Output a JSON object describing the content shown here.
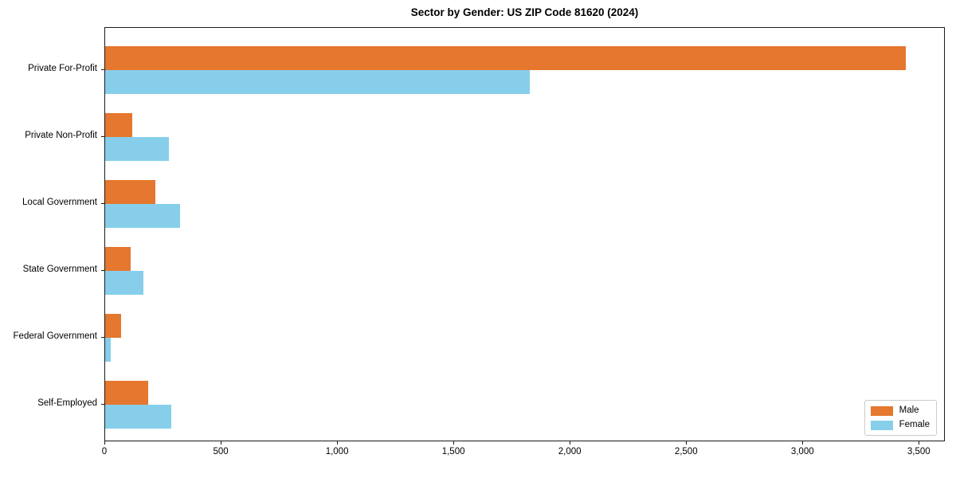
{
  "chart_data": {
    "type": "bar",
    "orientation": "horizontal",
    "title": "Sector by Gender: US ZIP Code 81620 (2024)",
    "categories": [
      "Private For-Profit",
      "Private Non-Profit",
      "Local Government",
      "State Government",
      "Federal Government",
      "Self-Employed"
    ],
    "series": [
      {
        "name": "Male",
        "color": "#E5772E",
        "values": [
          3440,
          115,
          215,
          110,
          70,
          185
        ]
      },
      {
        "name": "Female",
        "color": "#87CEEB",
        "values": [
          1825,
          275,
          320,
          165,
          25,
          285
        ]
      }
    ],
    "xlabel": "",
    "ylabel": "",
    "xlim": [
      0,
      3612
    ],
    "x_tick_values": [
      0,
      500,
      1000,
      1500,
      2000,
      2500,
      3000,
      3500
    ],
    "x_tick_labels": [
      "0",
      "500",
      "1,000",
      "1,500",
      "2,000",
      "2,500",
      "3,000",
      "3,500"
    ],
    "legend_position": "lower right",
    "grid": false,
    "background_color": "#ffffff",
    "frame_color": "#1a1a1a"
  }
}
